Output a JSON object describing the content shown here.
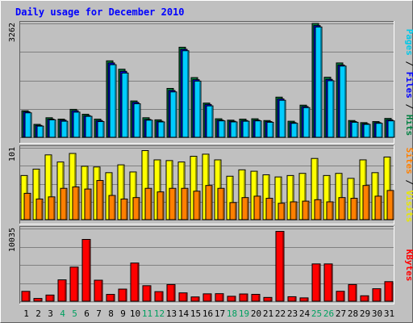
{
  "chart_data": {
    "type": "bar",
    "title": "Daily usage for December 2010",
    "categories": [
      "1",
      "2",
      "3",
      "4",
      "5",
      "6",
      "7",
      "8",
      "9",
      "10",
      "11",
      "12",
      "13",
      "14",
      "15",
      "16",
      "17",
      "18",
      "19",
      "20",
      "21",
      "22",
      "23",
      "24",
      "25",
      "26",
      "27",
      "28",
      "29",
      "30",
      "31"
    ],
    "weekend_days": [
      "4",
      "5",
      "11",
      "12",
      "18",
      "19",
      "25",
      "26"
    ],
    "panels": [
      {
        "id": "top",
        "ymax_label": "3262",
        "ymax": 3262,
        "ylabel_parts": [
          "Pages",
          "Files",
          "Hits"
        ],
        "ylabel_colors": [
          "#00c8e8",
          "#0000ff",
          "#008040"
        ],
        "series": [
          {
            "name": "Hits",
            "color": "#008040",
            "values": [
              760,
              370,
              560,
              520,
              800,
              660,
              520,
              2190,
              1950,
              1040,
              560,
              500,
              1400,
              2580,
              1710,
              980,
              530,
              490,
              520,
              530,
              480,
              1150,
              460,
              920,
              3260,
              1720,
              2130,
              480,
              420,
              450,
              540
            ]
          },
          {
            "name": "Files",
            "color": "#0000ff",
            "values": [
              730,
              340,
              520,
              490,
              760,
              620,
              480,
              2130,
              1890,
              1000,
              510,
              460,
              1340,
              2520,
              1650,
              940,
              490,
              460,
              480,
              490,
              450,
              1100,
              420,
              880,
              3200,
              1660,
              2070,
              450,
              390,
              420,
              500
            ]
          },
          {
            "name": "Pages",
            "color": "#00ccff",
            "values": [
              700,
              320,
              500,
              460,
              720,
              600,
              450,
              2080,
              1840,
              960,
              490,
              440,
              1300,
              2480,
              1610,
              900,
              470,
              440,
              460,
              470,
              430,
              1060,
              400,
              850,
              3160,
              1620,
              2040,
              430,
              370,
              400,
              470
            ]
          }
        ]
      },
      {
        "id": "middle",
        "ymax_label": "101",
        "ymax": 101,
        "ylabel_parts": [
          "Sites",
          "Visits"
        ],
        "ylabel_colors": [
          "#ff8000",
          "#e8e800"
        ],
        "series": [
          {
            "name": "Visits",
            "color": "#ffff00",
            "values": [
              62,
              71,
              91,
              81,
              93,
              75,
              74,
              66,
              77,
              67,
              97,
              84,
              83,
              81,
              89,
              92,
              84,
              61,
              70,
              68,
              63,
              60,
              62,
              65,
              86,
              62,
              65,
              58,
              84,
              66,
              88
            ]
          },
          {
            "name": "Sites",
            "color": "#ff8000",
            "values": [
              37,
              29,
              32,
              44,
              46,
              43,
              55,
              34,
              29,
              31,
              44,
              39,
              44,
              44,
              40,
              48,
              44,
              24,
              31,
              33,
              30,
              23,
              25,
              26,
              28,
              25,
              31,
              30,
              48,
              33,
              41
            ]
          }
        ]
      },
      {
        "id": "bottom",
        "ymax_label": "10035",
        "ymax": 10035,
        "ylabel_parts": [
          "KBytes"
        ],
        "ylabel_colors": [
          "#ff0000"
        ],
        "series": [
          {
            "name": "KBytes",
            "color": "#ff0000",
            "values": [
              1360,
              380,
              850,
              2950,
              4710,
              8530,
              2900,
              940,
              1670,
              5270,
              2140,
              1320,
              2300,
              1150,
              590,
              1020,
              1040,
              680,
              1000,
              950,
              520,
              9640,
              620,
              460,
              5150,
              5150,
              1370,
              2300,
              750,
              1720,
              2700
            ]
          }
        ]
      }
    ],
    "colors": {
      "background": "#c0c0c0",
      "title": "#0000ff",
      "axis_text": "#000000",
      "weekend_tick": "#00a060",
      "gridline": "#808080"
    }
  }
}
